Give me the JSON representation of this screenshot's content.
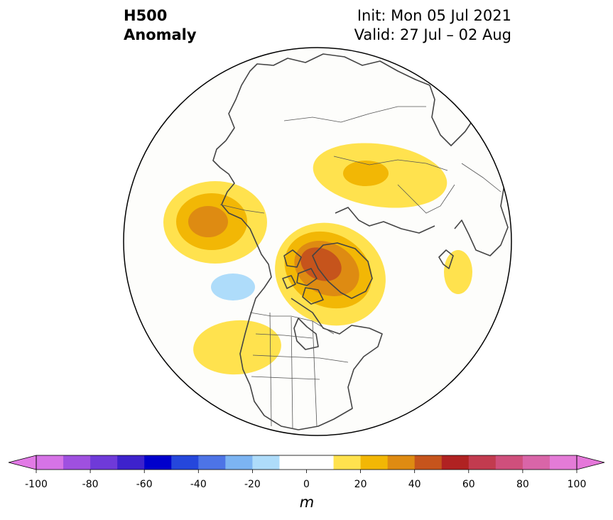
{
  "title": {
    "variable": "H500",
    "kind": "Anomaly",
    "init": "Init: Mon 05 Jul 2021",
    "valid": "Valid: 27 Jul – 02 Aug"
  },
  "colorbar": {
    "unit": "m",
    "tick_labels": [
      "-100",
      "-80",
      "-60",
      "-40",
      "-20",
      "0",
      "20",
      "40",
      "60",
      "80",
      "100"
    ],
    "levels": [
      -100,
      -90,
      -80,
      -70,
      -60,
      -50,
      -40,
      -30,
      -20,
      -10,
      10,
      20,
      30,
      40,
      50,
      60,
      70,
      80,
      90,
      100
    ],
    "colors": [
      "#d673e6",
      "#9f50e0",
      "#6f3ad9",
      "#3d22cc",
      "#0000cc",
      "#2547dc",
      "#4d74e6",
      "#7cb4f2",
      "#aedcfa",
      "#ffffff",
      "#ffe24e",
      "#f2b705",
      "#de8b12",
      "#c6541c",
      "#b02222",
      "#c23b4f",
      "#cf4f7c",
      "#d965a8",
      "#e47bd7"
    ],
    "under_color": "#e27ae6",
    "over_color": "#e577da"
  },
  "map": {
    "projection": "north-polar-stereographic",
    "region": "Northern Hemisphere (North America centered)",
    "anomaly_features": [
      {
        "name": "Alaska-Bering ridge",
        "sign": "positive",
        "max_bin": "30-40"
      },
      {
        "name": "Greenland-Canadian Arctic ridge",
        "sign": "positive",
        "max_bin": "40-50"
      },
      {
        "name": "Siberia ridge",
        "sign": "positive",
        "max_bin": "20-30"
      },
      {
        "name": "Northwest US ridge",
        "sign": "positive",
        "max_bin": "10-20"
      },
      {
        "name": "Gulf of Alaska trough",
        "sign": "negative",
        "max_bin": "-20 to -10"
      },
      {
        "name": "Western Europe ridge",
        "sign": "positive",
        "max_bin": "10-20"
      }
    ]
  }
}
